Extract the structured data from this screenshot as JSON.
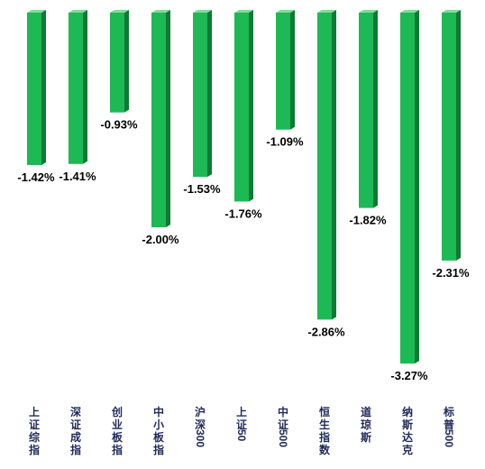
{
  "chart_data": {
    "type": "bar",
    "title": "",
    "xlabel": "",
    "ylabel": "",
    "ylim": [
      -3.5,
      0
    ],
    "grid": false,
    "categories": [
      "上证综指",
      "深证成指",
      "创业板指",
      "中小板指",
      "沪深300",
      "上证50",
      "中证500",
      "恒生指数",
      "道琼斯",
      "纳斯达克",
      "标普500"
    ],
    "values": [
      -1.42,
      -1.41,
      -0.93,
      -2.0,
      -1.53,
      -1.76,
      -1.09,
      -2.86,
      -1.82,
      -3.27,
      -2.31
    ],
    "value_labels": [
      "-1.42%",
      "-1.41%",
      "-0.93%",
      "-2.00%",
      "-1.53%",
      "-1.76%",
      "-1.09%",
      "-2.86%",
      "-1.82%",
      "-3.27%",
      "-2.31%"
    ],
    "bar_color": "#1db954",
    "bar_side_color": "#0e7a34",
    "bar_top_color": "#7fdc9a"
  }
}
